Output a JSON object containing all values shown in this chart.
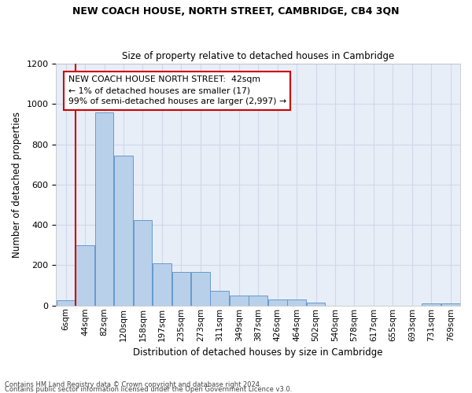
{
  "title": "NEW COACH HOUSE, NORTH STREET, CAMBRIDGE, CB4 3QN",
  "subtitle": "Size of property relative to detached houses in Cambridge",
  "xlabel": "Distribution of detached houses by size in Cambridge",
  "ylabel": "Number of detached properties",
  "categories": [
    "6sqm",
    "44sqm",
    "82sqm",
    "120sqm",
    "158sqm",
    "197sqm",
    "235sqm",
    "273sqm",
    "311sqm",
    "349sqm",
    "387sqm",
    "426sqm",
    "464sqm",
    "502sqm",
    "540sqm",
    "578sqm",
    "617sqm",
    "655sqm",
    "693sqm",
    "731sqm",
    "769sqm"
  ],
  "values": [
    25,
    300,
    960,
    745,
    425,
    210,
    165,
    165,
    75,
    50,
    50,
    30,
    30,
    15,
    0,
    0,
    0,
    0,
    0,
    12,
    12
  ],
  "bar_color": "#b8d0ea",
  "bar_edge_color": "#6699cc",
  "annotation_line_color": "#cc0000",
  "annotation_box_edge_color": "#cc0000",
  "annotation_box_text": "NEW COACH HOUSE NORTH STREET:  42sqm\n← 1% of detached houses are smaller (17)\n99% of semi-detached houses are larger (2,997) →",
  "ylim": [
    0,
    1200
  ],
  "yticks": [
    0,
    200,
    400,
    600,
    800,
    1000,
    1200
  ],
  "grid_color": "#d0d8e8",
  "bg_color": "#e8eef8",
  "footer_line1": "Contains HM Land Registry data © Crown copyright and database right 2024.",
  "footer_line2": "Contains public sector information licensed under the Open Government Licence v3.0."
}
